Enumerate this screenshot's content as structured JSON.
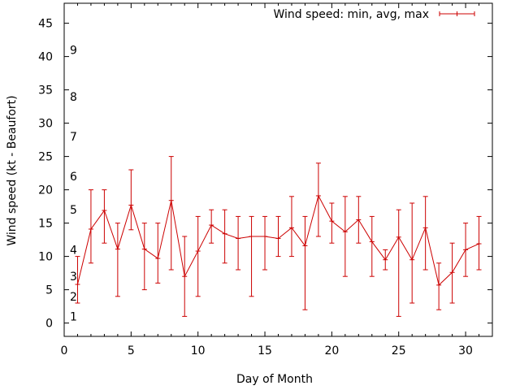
{
  "chart_data": {
    "type": "line",
    "title": "",
    "xlabel": "Day of Month",
    "ylabel": "Wind speed (kt - Beaufort)",
    "xlim": [
      0,
      32
    ],
    "ylim": [
      -2,
      48
    ],
    "xticks": [
      0,
      5,
      10,
      15,
      20,
      25,
      30
    ],
    "yticks": [
      0,
      5,
      10,
      15,
      20,
      25,
      30,
      35,
      40,
      45
    ],
    "legend": {
      "label": "Wind speed: min, avg, max",
      "position": "top-right"
    },
    "beaufort_scale": [
      {
        "label": "1",
        "y": 1
      },
      {
        "label": "2",
        "y": 4
      },
      {
        "label": "3",
        "y": 7
      },
      {
        "label": "4",
        "y": 11
      },
      {
        "label": "5",
        "y": 17
      },
      {
        "label": "6",
        "y": 22
      },
      {
        "label": "7",
        "y": 28
      },
      {
        "label": "8",
        "y": 34
      },
      {
        "label": "9",
        "y": 41
      }
    ],
    "series": [
      {
        "name": "Wind speed: min, avg, max",
        "color": "#cc0000",
        "x": [
          1,
          2,
          3,
          4,
          5,
          6,
          7,
          8,
          9,
          10,
          11,
          12,
          13,
          14,
          15,
          16,
          17,
          18,
          19,
          20,
          21,
          22,
          23,
          24,
          25,
          26,
          27,
          28,
          29,
          30,
          31
        ],
        "avg": [
          5.8,
          14.1,
          16.9,
          11.1,
          17.7,
          11.1,
          9.7,
          18.4,
          7.0,
          10.8,
          14.7,
          13.4,
          12.7,
          13.0,
          13.0,
          12.7,
          14.3,
          11.6,
          19.1,
          15.3,
          13.7,
          15.5,
          12.2,
          9.5,
          12.9,
          9.5,
          14.3,
          5.7,
          7.6,
          11.0,
          11.9
        ],
        "min": [
          3,
          9,
          12,
          4,
          14,
          5,
          6,
          8,
          1,
          4,
          12,
          9,
          8,
          4,
          8,
          10,
          10,
          2,
          13,
          12,
          7,
          12,
          7,
          8,
          1,
          3,
          8,
          2,
          3,
          7,
          8
        ],
        "max": [
          10,
          20,
          20,
          15,
          23,
          15,
          15,
          25,
          13,
          16,
          17,
          17,
          16,
          16,
          16,
          16,
          19,
          16,
          24,
          18,
          19,
          19,
          16,
          11,
          17,
          18,
          19,
          9,
          12,
          15,
          16
        ]
      }
    ]
  }
}
